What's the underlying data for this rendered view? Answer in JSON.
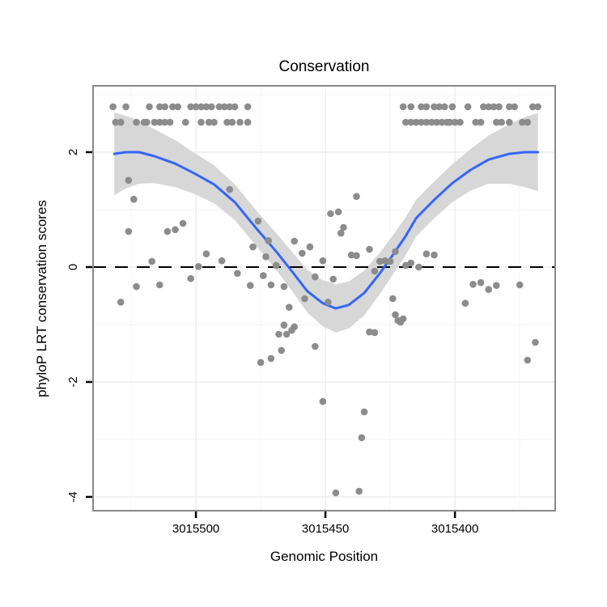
{
  "title": "Conservation",
  "x_axis": {
    "label": "Genomic Position",
    "tick_labels": [
      "3015500",
      "3015450",
      "3015400"
    ],
    "tick_values": [
      3015500,
      3015450,
      3015400
    ],
    "minor_tick_values": [
      3015525,
      3015475,
      3015425,
      3015375
    ],
    "range_left": 3015539.7,
    "range_right": 3015361.3,
    "reversed": true
  },
  "y_axis": {
    "label": "phyloP LRT conservation scores",
    "tick_labels": [
      "2",
      "0",
      "-2",
      "-4"
    ],
    "tick_values": [
      2,
      0,
      -2,
      -4
    ],
    "minor_tick_values": [
      3,
      1,
      -1,
      -3
    ],
    "range_top": 3.155,
    "range_bottom": -4.24
  },
  "colors": {
    "background": "#ffffff",
    "panel_border": "#898989",
    "grid_major": "#ececec",
    "grid_minor": "#f5f5f5",
    "point": "#8c8c8c",
    "smooth_line": "#3366ff",
    "ribbon": "#d7d7d7",
    "reference_line": "#000000",
    "tick": "#000000",
    "text": "#000000"
  },
  "chart_data": {
    "type": "scatter",
    "title": "Conservation",
    "xlabel": "Genomic Position",
    "ylabel": "phyloP LRT conservation scores",
    "x_range": [
      3015361.3,
      3015539.7
    ],
    "x_direction": "decreasing-left-to-right",
    "y_range": [
      -4.24,
      3.155
    ],
    "grid": "on",
    "legend": "none",
    "reference_line_y": 0,
    "reference_line_style": "dashed",
    "smoother": "loess with confidence ribbon",
    "points": [
      [
        3015532,
        2.79
      ],
      [
        3015527,
        2.79
      ],
      [
        3015518,
        2.79
      ],
      [
        3015514,
        2.79
      ],
      [
        3015512,
        2.79
      ],
      [
        3015509,
        2.79
      ],
      [
        3015507,
        2.79
      ],
      [
        3015502,
        2.79
      ],
      [
        3015500,
        2.79
      ],
      [
        3015498,
        2.79
      ],
      [
        3015496,
        2.79
      ],
      [
        3015494,
        2.79
      ],
      [
        3015491,
        2.79
      ],
      [
        3015489,
        2.79
      ],
      [
        3015487,
        2.79
      ],
      [
        3015485,
        2.79
      ],
      [
        3015480,
        2.79
      ],
      [
        3015420,
        2.79
      ],
      [
        3015417,
        2.79
      ],
      [
        3015413,
        2.79
      ],
      [
        3015411,
        2.79
      ],
      [
        3015408,
        2.79
      ],
      [
        3015406,
        2.79
      ],
      [
        3015404,
        2.79
      ],
      [
        3015401,
        2.79
      ],
      [
        3015395,
        2.79
      ],
      [
        3015389,
        2.79
      ],
      [
        3015387,
        2.79
      ],
      [
        3015385,
        2.79
      ],
      [
        3015383,
        2.79
      ],
      [
        3015379,
        2.79
      ],
      [
        3015377,
        2.79
      ],
      [
        3015370,
        2.79
      ],
      [
        3015368,
        2.79
      ],
      [
        3015531,
        2.52
      ],
      [
        3015529,
        2.52
      ],
      [
        3015523,
        2.52
      ],
      [
        3015520,
        2.52
      ],
      [
        3015519,
        2.52
      ],
      [
        3015516,
        2.52
      ],
      [
        3015514,
        2.52
      ],
      [
        3015512,
        2.52
      ],
      [
        3015510,
        2.52
      ],
      [
        3015504,
        2.52
      ],
      [
        3015498,
        2.52
      ],
      [
        3015495,
        2.52
      ],
      [
        3015493,
        2.52
      ],
      [
        3015488,
        2.52
      ],
      [
        3015486,
        2.52
      ],
      [
        3015483,
        2.52
      ],
      [
        3015480,
        2.52
      ],
      [
        3015419,
        2.52
      ],
      [
        3015417,
        2.52
      ],
      [
        3015415,
        2.52
      ],
      [
        3015413,
        2.52
      ],
      [
        3015411,
        2.52
      ],
      [
        3015409,
        2.52
      ],
      [
        3015407,
        2.52
      ],
      [
        3015405,
        2.52
      ],
      [
        3015403,
        2.52
      ],
      [
        3015402,
        2.52
      ],
      [
        3015400,
        2.52
      ],
      [
        3015398,
        2.52
      ],
      [
        3015392,
        2.52
      ],
      [
        3015390,
        2.52
      ],
      [
        3015384,
        2.52
      ],
      [
        3015382,
        2.52
      ],
      [
        3015379,
        2.52
      ],
      [
        3015374,
        2.52
      ],
      [
        3015372,
        2.52
      ],
      [
        3015526,
        1.51
      ],
      [
        3015524,
        1.18
      ],
      [
        3015487,
        1.35
      ],
      [
        3015526,
        0.62
      ],
      [
        3015511,
        0.62
      ],
      [
        3015508,
        0.65
      ],
      [
        3015505,
        0.76
      ],
      [
        3015517,
        0.1
      ],
      [
        3015496,
        0.23
      ],
      [
        3015490,
        0.11
      ],
      [
        3015499,
        0.01
      ],
      [
        3015484,
        -0.11
      ],
      [
        3015502,
        -0.2
      ],
      [
        3015523,
        -0.34
      ],
      [
        3015514,
        -0.31
      ],
      [
        3015479,
        -0.32
      ],
      [
        3015529,
        -0.61
      ],
      [
        3015478,
        0.35
      ],
      [
        3015476,
        0.8
      ],
      [
        3015472,
        0.46
      ],
      [
        3015473,
        0.18
      ],
      [
        3015469,
        0.03
      ],
      [
        3015474,
        -0.15
      ],
      [
        3015471,
        -0.31
      ],
      [
        3015466,
        -0.34
      ],
      [
        3015464,
        -0.7
      ],
      [
        3015438,
        1.23
      ],
      [
        3015448,
        0.93
      ],
      [
        3015445,
        0.96
      ],
      [
        3015443,
        0.69
      ],
      [
        3015444,
        0.59
      ],
      [
        3015462,
        0.45
      ],
      [
        3015456,
        0.35
      ],
      [
        3015459,
        0.24
      ],
      [
        3015440,
        0.21
      ],
      [
        3015438,
        0.2
      ],
      [
        3015451,
        0.11
      ],
      [
        3015433,
        0.31
      ],
      [
        3015454,
        -0.17
      ],
      [
        3015447,
        -0.21
      ],
      [
        3015458,
        -0.55
      ],
      [
        3015449,
        -0.61
      ],
      [
        3015466,
        -1.01
      ],
      [
        3015468,
        -1.17
      ],
      [
        3015465,
        -1.17
      ],
      [
        3015463,
        -1.1
      ],
      [
        3015462,
        -1.04
      ],
      [
        3015467,
        -1.45
      ],
      [
        3015454,
        -1.38
      ],
      [
        3015475,
        -1.66
      ],
      [
        3015471,
        -1.59
      ],
      [
        3015433,
        -1.13
      ],
      [
        3015431,
        -1.14
      ],
      [
        3015422,
        -0.93
      ],
      [
        3015420,
        -0.9
      ],
      [
        3015451,
        -2.34
      ],
      [
        3015435,
        -2.52
      ],
      [
        3015436,
        -2.97
      ],
      [
        3015446,
        -3.93
      ],
      [
        3015437,
        -3.9
      ],
      [
        3015423,
        0.27
      ],
      [
        3015419,
        0.03
      ],
      [
        3015417,
        0.07
      ],
      [
        3015414,
        0.0
      ],
      [
        3015429,
        0.1
      ],
      [
        3015427,
        0.11
      ],
      [
        3015425,
        0.1
      ],
      [
        3015431,
        -0.07
      ],
      [
        3015411,
        0.23
      ],
      [
        3015408,
        0.21
      ],
      [
        3015393,
        -0.3
      ],
      [
        3015390,
        -0.27
      ],
      [
        3015387,
        -0.39
      ],
      [
        3015384,
        -0.32
      ],
      [
        3015375,
        -0.31
      ],
      [
        3015396,
        -0.63
      ],
      [
        3015424,
        -0.55
      ],
      [
        3015423,
        -0.83
      ],
      [
        3015421,
        -0.96
      ],
      [
        3015369,
        -1.31
      ],
      [
        3015372,
        -1.62
      ]
    ],
    "smooth": [
      [
        3015531.5,
        1.97,
        1.25,
        2.69
      ],
      [
        3015527,
        2.0,
        1.37,
        2.63
      ],
      [
        3015522,
        2.0,
        1.45,
        2.55
      ],
      [
        3015516,
        1.93,
        1.46,
        2.4
      ],
      [
        3015508,
        1.8,
        1.39,
        2.21
      ],
      [
        3015501,
        1.64,
        1.28,
        2.0
      ],
      [
        3015493,
        1.44,
        1.11,
        1.77
      ],
      [
        3015485,
        1.13,
        0.82,
        1.44
      ],
      [
        3015477,
        0.69,
        0.38,
        1.0
      ],
      [
        3015469,
        0.27,
        -0.05,
        0.59
      ],
      [
        3015463,
        -0.07,
        -0.41,
        0.27
      ],
      [
        3015457,
        -0.42,
        -0.79,
        -0.05
      ],
      [
        3015451,
        -0.63,
        -1.03,
        -0.23
      ],
      [
        3015446,
        -0.72,
        -1.14,
        -0.3
      ],
      [
        3015441,
        -0.66,
        -1.07,
        -0.25
      ],
      [
        3015435,
        -0.45,
        -0.84,
        -0.06
      ],
      [
        3015429,
        -0.11,
        -0.47,
        0.25
      ],
      [
        3015424,
        0.21,
        -0.13,
        0.55
      ],
      [
        3015419,
        0.54,
        0.21,
        0.87
      ],
      [
        3015415,
        0.85,
        0.53,
        1.17
      ],
      [
        3015408,
        1.17,
        0.85,
        1.49
      ],
      [
        3015401,
        1.46,
        1.13,
        1.79
      ],
      [
        3015394,
        1.69,
        1.33,
        2.05
      ],
      [
        3015387,
        1.87,
        1.45,
        2.29
      ],
      [
        3015379,
        1.97,
        1.45,
        2.49
      ],
      [
        3015373,
        2.0,
        1.39,
        2.61
      ],
      [
        3015368,
        2.0,
        1.32,
        2.68
      ]
    ]
  }
}
